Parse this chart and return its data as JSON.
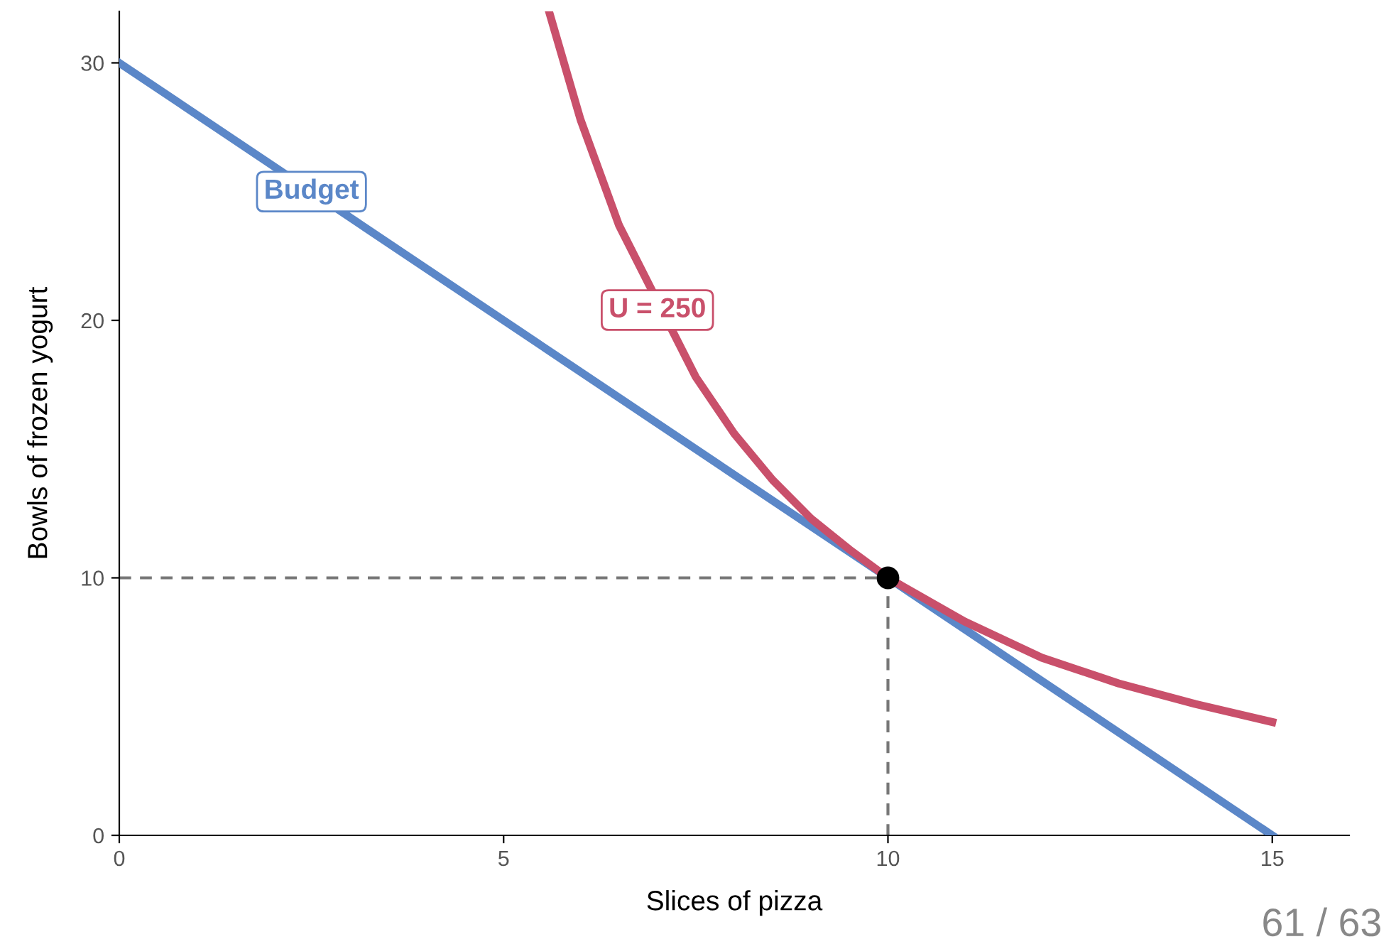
{
  "chart_data": {
    "type": "line",
    "xlabel": "Slices of pizza",
    "ylabel": "Bowls of frozen yogurt",
    "xlim": [
      0,
      16
    ],
    "ylim": [
      0,
      32
    ],
    "xticks": [
      0,
      5,
      10,
      15
    ],
    "yticks": [
      0,
      10,
      20,
      30
    ],
    "grid": false,
    "legend": false,
    "marker": "none",
    "line_style": "solid",
    "series": [
      {
        "color": "#5b87c8",
        "x": [
          0,
          15
        ],
        "values": [
          30,
          0
        ]
      },
      {
        "color": "#c9506b",
        "x": [
          5.6,
          6,
          6.5,
          7.5,
          8,
          8.5,
          9,
          9.5,
          10,
          11,
          12,
          13,
          14,
          15
        ],
        "values": [
          31.9,
          27.8,
          23.7,
          17.8,
          15.6,
          13.8,
          12.3,
          11.1,
          10,
          8.3,
          6.9,
          5.9,
          5.1,
          4.4
        ]
      },
      {
        "color": "#777777",
        "line_style": "dashed",
        "x": [
          0,
          10,
          10
        ],
        "values": [
          10,
          10,
          0
        ]
      },
      {
        "type": "scatter",
        "color": "#000000",
        "marker": "circle",
        "x": [
          10
        ],
        "values": [
          10
        ]
      }
    ],
    "annotations": [
      {
        "text": "Budget",
        "x": 2.5,
        "y": 25
      },
      {
        "text": "U = 250",
        "x": 7,
        "y": 20.4
      },
      "61 / 63"
    ]
  }
}
